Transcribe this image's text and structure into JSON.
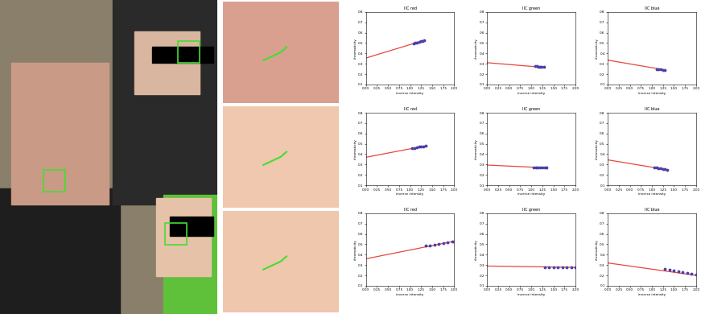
{
  "chart_data": [
    {
      "type": "scatter",
      "title": "IIC red",
      "x_label": "inverse intensity",
      "y_label": "chromaticity",
      "xlim": [
        0,
        2
      ],
      "ylim": [
        0.1,
        0.8
      ],
      "xticks": [
        {
          "value": 0,
          "label": "0.00"
        },
        {
          "value": 0.25,
          "label": "0.25"
        },
        {
          "value": 0.5,
          "label": "0.50"
        },
        {
          "value": 0.75,
          "label": "0.75"
        },
        {
          "value": 1,
          "label": "1.00"
        },
        {
          "value": 1.25,
          "label": "1.25"
        },
        {
          "value": 1.5,
          "label": "1.50"
        },
        {
          "value": 1.75,
          "label": "1.75"
        },
        {
          "value": 2,
          "label": "2.00"
        }
      ],
      "yticks": [
        0.1,
        0.2,
        0.3,
        0.4,
        0.5,
        0.6,
        0.7,
        0.8
      ],
      "series": [
        {
          "type": "line",
          "color": "#e8463c",
          "line_style": "solid",
          "x": [
            0,
            1.31
          ],
          "values": [
            0.355,
            0.525
          ]
        },
        {
          "type": "scatter",
          "color": "#4b3fa8",
          "marker": "o",
          "x": [
            1.08,
            1.12,
            1.16,
            1.2,
            1.24,
            1.28,
            1.31
          ],
          "values": [
            0.495,
            0.5,
            0.505,
            0.51,
            0.515,
            0.52,
            0.525
          ]
        }
      ]
    },
    {
      "type": "scatter",
      "title": "IIC green",
      "x_label": "inverse intensity",
      "y_label": "chromaticity",
      "xlim": [
        0,
        2
      ],
      "ylim": [
        0.1,
        0.8
      ],
      "xticks": [
        {
          "value": 0,
          "label": "0.00"
        },
        {
          "value": 0.25,
          "label": "0.25"
        },
        {
          "value": 0.5,
          "label": "0.50"
        },
        {
          "value": 0.75,
          "label": "0.75"
        },
        {
          "value": 1,
          "label": "1.00"
        },
        {
          "value": 1.25,
          "label": "1.25"
        },
        {
          "value": 1.5,
          "label": "1.50"
        },
        {
          "value": 1.75,
          "label": "1.75"
        },
        {
          "value": 2,
          "label": "2.00"
        }
      ],
      "yticks": [
        0.1,
        0.2,
        0.3,
        0.4,
        0.5,
        0.6,
        0.7,
        0.8
      ],
      "series": [
        {
          "type": "line",
          "color": "#e8463c",
          "line_style": "solid",
          "x": [
            0,
            1.28
          ],
          "values": [
            0.31,
            0.265
          ]
        },
        {
          "type": "scatter",
          "color": "#4b3fa8",
          "marker": "o",
          "x": [
            1.08,
            1.12,
            1.16,
            1.2,
            1.24,
            1.28
          ],
          "values": [
            0.275,
            0.275,
            0.272,
            0.27,
            0.268,
            0.267
          ]
        }
      ]
    },
    {
      "type": "scatter",
      "title": "IIC blue",
      "x_label": "inverse intensity",
      "y_label": "chromaticity",
      "xlim": [
        0,
        2
      ],
      "ylim": [
        0.1,
        0.8
      ],
      "xticks": [
        {
          "value": 0,
          "label": "0.00"
        },
        {
          "value": 0.25,
          "label": "0.25"
        },
        {
          "value": 0.5,
          "label": "0.50"
        },
        {
          "value": 0.75,
          "label": "0.75"
        },
        {
          "value": 1,
          "label": "1.00"
        },
        {
          "value": 1.25,
          "label": "1.25"
        },
        {
          "value": 1.5,
          "label": "1.50"
        },
        {
          "value": 1.75,
          "label": "1.75"
        },
        {
          "value": 2,
          "label": "2.00"
        }
      ],
      "yticks": [
        0.1,
        0.2,
        0.3,
        0.4,
        0.5,
        0.6,
        0.7,
        0.8
      ],
      "series": [
        {
          "type": "line",
          "color": "#e8463c",
          "line_style": "solid",
          "x": [
            0,
            1.3
          ],
          "values": [
            0.335,
            0.24
          ]
        },
        {
          "type": "scatter",
          "color": "#4b3fa8",
          "marker": "o",
          "x": [
            1.1,
            1.15,
            1.2,
            1.25,
            1.3
          ],
          "values": [
            0.25,
            0.248,
            0.245,
            0.242,
            0.24
          ]
        }
      ]
    },
    {
      "type": "scatter",
      "title": "IIC red",
      "x_label": "inverse intensity",
      "y_label": "chromaticity",
      "xlim": [
        0,
        2
      ],
      "ylim": [
        0.1,
        0.8
      ],
      "xticks": [
        {
          "value": 0,
          "label": "0.00"
        },
        {
          "value": 0.25,
          "label": "0.25"
        },
        {
          "value": 0.5,
          "label": "0.50"
        },
        {
          "value": 0.75,
          "label": "0.75"
        },
        {
          "value": 1,
          "label": "1.00"
        },
        {
          "value": 1.25,
          "label": "1.25"
        },
        {
          "value": 1.5,
          "label": "1.50"
        },
        {
          "value": 1.75,
          "label": "1.75"
        },
        {
          "value": 2,
          "label": "2.00"
        }
      ],
      "yticks": [
        0.1,
        0.2,
        0.3,
        0.4,
        0.5,
        0.6,
        0.7,
        0.8
      ],
      "series": [
        {
          "type": "line",
          "color": "#e8463c",
          "line_style": "solid",
          "x": [
            0,
            1.35
          ],
          "values": [
            0.37,
            0.48
          ]
        },
        {
          "type": "scatter",
          "color": "#4b3fa8",
          "marker": "o",
          "x": [
            1.05,
            1.1,
            1.15,
            1.2,
            1.25,
            1.3,
            1.35
          ],
          "values": [
            0.455,
            0.46,
            0.465,
            0.47,
            0.473,
            0.476,
            0.48
          ]
        }
      ]
    },
    {
      "type": "scatter",
      "title": "IIC green",
      "x_label": "inverse intensity",
      "y_label": "chromaticity",
      "xlim": [
        0,
        2
      ],
      "ylim": [
        0.1,
        0.8
      ],
      "xticks": [
        {
          "value": 0,
          "label": "0.00"
        },
        {
          "value": 0.25,
          "label": "0.25"
        },
        {
          "value": 0.5,
          "label": "0.50"
        },
        {
          "value": 0.75,
          "label": "0.75"
        },
        {
          "value": 1,
          "label": "1.00"
        },
        {
          "value": 1.25,
          "label": "1.25"
        },
        {
          "value": 1.5,
          "label": "1.50"
        },
        {
          "value": 1.75,
          "label": "1.75"
        },
        {
          "value": 2,
          "label": "2.00"
        }
      ],
      "yticks": [
        0.1,
        0.2,
        0.3,
        0.4,
        0.5,
        0.6,
        0.7,
        0.8
      ],
      "series": [
        {
          "type": "line",
          "color": "#e8463c",
          "line_style": "solid",
          "x": [
            0,
            1.35
          ],
          "values": [
            0.295,
            0.268
          ]
        },
        {
          "type": "scatter",
          "color": "#4b3fa8",
          "marker": "o",
          "x": [
            1.05,
            1.1,
            1.15,
            1.2,
            1.25,
            1.3,
            1.35
          ],
          "values": [
            0.275,
            0.273,
            0.272,
            0.27,
            0.27,
            0.269,
            0.268
          ]
        }
      ]
    },
    {
      "type": "scatter",
      "title": "IIC blue",
      "x_label": "inverse intensity",
      "y_label": "chromaticity",
      "xlim": [
        0,
        2
      ],
      "ylim": [
        0.1,
        0.8
      ],
      "xticks": [
        {
          "value": 0,
          "label": "0.00"
        },
        {
          "value": 0.25,
          "label": "0.25"
        },
        {
          "value": 0.5,
          "label": "0.50"
        },
        {
          "value": 0.75,
          "label": "0.75"
        },
        {
          "value": 1,
          "label": "1.00"
        },
        {
          "value": 1.25,
          "label": "1.25"
        },
        {
          "value": 1.5,
          "label": "1.50"
        },
        {
          "value": 1.75,
          "label": "1.75"
        },
        {
          "value": 2,
          "label": "2.00"
        }
      ],
      "yticks": [
        0.1,
        0.2,
        0.3,
        0.4,
        0.5,
        0.6,
        0.7,
        0.8
      ],
      "series": [
        {
          "type": "line",
          "color": "#e8463c",
          "line_style": "solid",
          "x": [
            0,
            1.35
          ],
          "values": [
            0.345,
            0.25
          ]
        },
        {
          "type": "scatter",
          "color": "#4b3fa8",
          "marker": "o",
          "x": [
            1.05,
            1.1,
            1.15,
            1.2,
            1.25,
            1.3,
            1.35
          ],
          "values": [
            0.272,
            0.27,
            0.266,
            0.262,
            0.258,
            0.255,
            0.252
          ]
        }
      ]
    },
    {
      "type": "scatter",
      "title": "IIC red",
      "x_label": "inverse intensity",
      "y_label": "chromaticity",
      "xlim": [
        0,
        2
      ],
      "ylim": [
        0.1,
        0.8
      ],
      "xticks": [
        {
          "value": 0,
          "label": "0.00"
        },
        {
          "value": 0.25,
          "label": "0.25"
        },
        {
          "value": 0.5,
          "label": "0.50"
        },
        {
          "value": 0.75,
          "label": "0.75"
        },
        {
          "value": 1,
          "label": "1.00"
        },
        {
          "value": 1.25,
          "label": "1.25"
        },
        {
          "value": 1.5,
          "label": "1.50"
        },
        {
          "value": 1.75,
          "label": "1.75"
        },
        {
          "value": 2,
          "label": "2.00"
        }
      ],
      "yticks": [
        0.1,
        0.2,
        0.3,
        0.4,
        0.5,
        0.6,
        0.7,
        0.8
      ],
      "series": [
        {
          "type": "line",
          "color": "#e8463c",
          "line_style": "solid",
          "x": [
            0,
            2.0
          ],
          "values": [
            0.36,
            0.53
          ]
        },
        {
          "type": "scatter",
          "color": "#4b3fa8",
          "marker": "o",
          "x": [
            1.35,
            1.45,
            1.55,
            1.65,
            1.75,
            1.85,
            1.95,
            2.0
          ],
          "values": [
            0.485,
            0.49,
            0.497,
            0.503,
            0.51,
            0.517,
            0.523,
            0.527
          ]
        }
      ]
    },
    {
      "type": "scatter",
      "title": "IIC green",
      "x_label": "inverse intensity",
      "y_label": "chromaticity",
      "xlim": [
        0,
        2
      ],
      "ylim": [
        0.1,
        0.8
      ],
      "xticks": [
        {
          "value": 0,
          "label": "0.00"
        },
        {
          "value": 0.25,
          "label": "0.25"
        },
        {
          "value": 0.5,
          "label": "0.50"
        },
        {
          "value": 0.75,
          "label": "0.75"
        },
        {
          "value": 1,
          "label": "1.00"
        },
        {
          "value": 1.25,
          "label": "1.25"
        },
        {
          "value": 1.5,
          "label": "1.50"
        },
        {
          "value": 1.75,
          "label": "1.75"
        },
        {
          "value": 2,
          "label": "2.00"
        }
      ],
      "yticks": [
        0.1,
        0.2,
        0.3,
        0.4,
        0.5,
        0.6,
        0.7,
        0.8
      ],
      "series": [
        {
          "type": "line",
          "color": "#e8463c",
          "line_style": "solid",
          "x": [
            0,
            2.0
          ],
          "values": [
            0.29,
            0.278
          ]
        },
        {
          "type": "scatter",
          "color": "#4b3fa8",
          "marker": "o",
          "x": [
            1.3,
            1.4,
            1.5,
            1.6,
            1.7,
            1.8,
            1.9,
            2.0
          ],
          "values": [
            0.281,
            0.281,
            0.28,
            0.28,
            0.279,
            0.279,
            0.278,
            0.278
          ]
        }
      ]
    },
    {
      "type": "scatter",
      "title": "IIC blue",
      "x_label": "inverse intensity",
      "y_label": "chromaticity",
      "xlim": [
        0,
        2
      ],
      "ylim": [
        0.1,
        0.8
      ],
      "xticks": [
        {
          "value": 0,
          "label": "0.00"
        },
        {
          "value": 0.25,
          "label": "0.25"
        },
        {
          "value": 0.5,
          "label": "0.50"
        },
        {
          "value": 0.75,
          "label": "0.75"
        },
        {
          "value": 1,
          "label": "1.00"
        },
        {
          "value": 1.25,
          "label": "1.25"
        },
        {
          "value": 1.5,
          "label": "1.50"
        },
        {
          "value": 1.75,
          "label": "1.75"
        },
        {
          "value": 2,
          "label": "2.00"
        }
      ],
      "yticks": [
        0.1,
        0.2,
        0.3,
        0.4,
        0.5,
        0.6,
        0.7,
        0.8
      ],
      "series": [
        {
          "type": "line",
          "color": "#e8463c",
          "line_style": "solid",
          "x": [
            0,
            2.0
          ],
          "values": [
            0.32,
            0.2
          ]
        },
        {
          "type": "scatter",
          "color": "#4b3fa8",
          "marker": "o",
          "x": [
            1.3,
            1.4,
            1.5,
            1.6,
            1.7,
            1.8,
            1.9,
            2.0
          ],
          "values": [
            0.26,
            0.252,
            0.245,
            0.238,
            0.23,
            0.222,
            0.214,
            0.205
          ]
        }
      ]
    }
  ]
}
